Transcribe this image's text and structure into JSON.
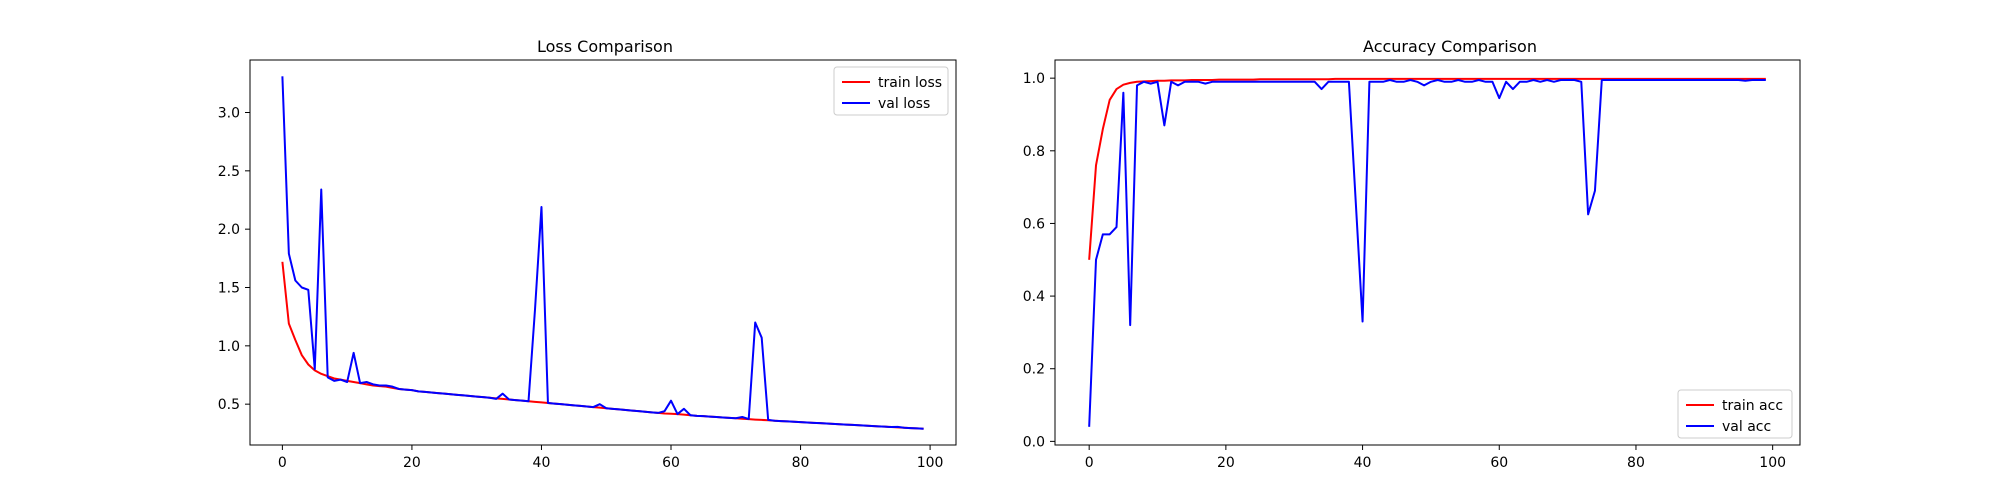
{
  "chart_data": [
    {
      "type": "line",
      "title": "Loss Comparison",
      "xlabel": "",
      "ylabel": "",
      "xlim": [
        -5,
        104
      ],
      "ylim": [
        0.15,
        3.45
      ],
      "xticks": [
        0,
        20,
        40,
        60,
        80,
        100
      ],
      "yticks": [
        0.5,
        1.0,
        1.5,
        2.0,
        2.5,
        3.0
      ],
      "xtick_labels": [
        "0",
        "20",
        "40",
        "60",
        "80",
        "100"
      ],
      "ytick_labels": [
        "0.5",
        "1.0",
        "1.5",
        "2.0",
        "2.5",
        "3.0"
      ],
      "grid": false,
      "legend_position": "top-right",
      "series": [
        {
          "name": "train loss",
          "color": "#ff0000",
          "x": [
            0,
            1,
            2,
            3,
            4,
            5,
            6,
            7,
            8,
            9,
            10,
            11,
            12,
            13,
            14,
            15,
            16,
            17,
            18,
            19,
            20,
            21,
            22,
            23,
            24,
            25,
            26,
            27,
            28,
            29,
            30,
            31,
            32,
            33,
            34,
            35,
            36,
            37,
            38,
            39,
            40,
            41,
            42,
            43,
            44,
            45,
            46,
            47,
            48,
            49,
            50,
            51,
            52,
            53,
            54,
            55,
            56,
            57,
            58,
            59,
            60,
            61,
            62,
            63,
            64,
            65,
            66,
            67,
            68,
            69,
            70,
            71,
            72,
            73,
            74,
            75,
            76,
            77,
            78,
            79,
            80,
            81,
            82,
            83,
            84,
            85,
            86,
            87,
            88,
            89,
            90,
            91,
            92,
            93,
            94,
            95,
            96,
            97,
            98,
            99
          ],
          "y": [
            1.72,
            1.19,
            1.05,
            0.92,
            0.84,
            0.79,
            0.76,
            0.74,
            0.72,
            0.71,
            0.7,
            0.69,
            0.68,
            0.67,
            0.66,
            0.655,
            0.65,
            0.64,
            0.63,
            0.625,
            0.62,
            0.61,
            0.605,
            0.6,
            0.595,
            0.59,
            0.585,
            0.58,
            0.575,
            0.57,
            0.565,
            0.56,
            0.555,
            0.55,
            0.545,
            0.54,
            0.535,
            0.53,
            0.525,
            0.52,
            0.515,
            0.51,
            0.505,
            0.5,
            0.495,
            0.49,
            0.485,
            0.48,
            0.475,
            0.47,
            0.465,
            0.46,
            0.455,
            0.45,
            0.445,
            0.44,
            0.435,
            0.43,
            0.425,
            0.42,
            0.418,
            0.415,
            0.41,
            0.405,
            0.4,
            0.397,
            0.393,
            0.39,
            0.386,
            0.382,
            0.379,
            0.375,
            0.372,
            0.368,
            0.365,
            0.362,
            0.358,
            0.355,
            0.352,
            0.349,
            0.346,
            0.343,
            0.34,
            0.337,
            0.334,
            0.331,
            0.328,
            0.325,
            0.322,
            0.319,
            0.316,
            0.313,
            0.31,
            0.307,
            0.304,
            0.301,
            0.298,
            0.295,
            0.292,
            0.289
          ]
        },
        {
          "name": "val loss",
          "color": "#0000ff",
          "x": [
            0,
            1,
            2,
            3,
            4,
            5,
            6,
            7,
            8,
            9,
            10,
            11,
            12,
            13,
            14,
            15,
            16,
            17,
            18,
            19,
            20,
            21,
            22,
            23,
            24,
            25,
            26,
            27,
            28,
            29,
            30,
            31,
            32,
            33,
            34,
            35,
            36,
            37,
            38,
            39,
            40,
            41,
            42,
            43,
            44,
            45,
            46,
            47,
            48,
            49,
            50,
            51,
            52,
            53,
            54,
            55,
            56,
            57,
            58,
            59,
            60,
            61,
            62,
            63,
            64,
            65,
            66,
            67,
            68,
            69,
            70,
            71,
            72,
            73,
            74,
            75,
            76,
            77,
            78,
            79,
            80,
            81,
            82,
            83,
            84,
            85,
            86,
            87,
            88,
            89,
            90,
            91,
            92,
            93,
            94,
            95,
            96,
            97,
            98,
            99
          ],
          "y": [
            3.31,
            1.79,
            1.56,
            1.5,
            1.48,
            0.8,
            2.34,
            0.73,
            0.7,
            0.71,
            0.69,
            0.94,
            0.68,
            0.69,
            0.67,
            0.66,
            0.66,
            0.65,
            0.63,
            0.625,
            0.62,
            0.61,
            0.605,
            0.6,
            0.595,
            0.59,
            0.585,
            0.58,
            0.575,
            0.57,
            0.565,
            0.56,
            0.555,
            0.545,
            0.59,
            0.54,
            0.535,
            0.53,
            0.525,
            1.31,
            2.19,
            0.51,
            0.505,
            0.5,
            0.495,
            0.49,
            0.485,
            0.48,
            0.475,
            0.5,
            0.465,
            0.46,
            0.455,
            0.45,
            0.445,
            0.44,
            0.435,
            0.43,
            0.425,
            0.44,
            0.53,
            0.415,
            0.46,
            0.405,
            0.4,
            0.397,
            0.393,
            0.39,
            0.386,
            0.382,
            0.379,
            0.39,
            0.372,
            1.2,
            1.07,
            0.365,
            0.358,
            0.355,
            0.352,
            0.349,
            0.346,
            0.343,
            0.34,
            0.337,
            0.334,
            0.331,
            0.328,
            0.325,
            0.322,
            0.319,
            0.316,
            0.313,
            0.31,
            0.307,
            0.304,
            0.305,
            0.298,
            0.295,
            0.292,
            0.289
          ]
        }
      ]
    },
    {
      "type": "line",
      "title": "Accuracy Comparison",
      "xlabel": "",
      "ylabel": "",
      "xlim": [
        -5,
        104
      ],
      "ylim": [
        -0.01,
        1.05
      ],
      "xticks": [
        0,
        20,
        40,
        60,
        80,
        100
      ],
      "yticks": [
        0.0,
        0.2,
        0.4,
        0.6,
        0.8,
        1.0
      ],
      "xtick_labels": [
        "0",
        "20",
        "40",
        "60",
        "80",
        "100"
      ],
      "ytick_labels": [
        "0.0",
        "0.2",
        "0.4",
        "0.6",
        "0.8",
        "1.0"
      ],
      "grid": false,
      "legend_position": "bottom-right",
      "series": [
        {
          "name": "train acc",
          "color": "#ff0000",
          "x": [
            0,
            1,
            2,
            3,
            4,
            5,
            6,
            7,
            8,
            9,
            10,
            11,
            12,
            13,
            14,
            15,
            16,
            17,
            18,
            19,
            20,
            21,
            22,
            23,
            24,
            25,
            26,
            27,
            28,
            29,
            30,
            31,
            32,
            33,
            34,
            35,
            36,
            37,
            38,
            39,
            40,
            41,
            42,
            43,
            44,
            45,
            46,
            47,
            48,
            49,
            50,
            51,
            52,
            53,
            54,
            55,
            56,
            57,
            58,
            59,
            60,
            61,
            62,
            63,
            64,
            65,
            66,
            67,
            68,
            69,
            70,
            71,
            72,
            73,
            74,
            75,
            76,
            77,
            78,
            79,
            80,
            81,
            82,
            83,
            84,
            85,
            86,
            87,
            88,
            89,
            90,
            91,
            92,
            93,
            94,
            95,
            96,
            97,
            98,
            99
          ],
          "y": [
            0.5,
            0.76,
            0.86,
            0.94,
            0.97,
            0.982,
            0.987,
            0.99,
            0.991,
            0.992,
            0.993,
            0.993,
            0.994,
            0.994,
            0.994,
            0.995,
            0.995,
            0.995,
            0.995,
            0.996,
            0.996,
            0.996,
            0.996,
            0.996,
            0.996,
            0.997,
            0.997,
            0.997,
            0.997,
            0.997,
            0.997,
            0.997,
            0.997,
            0.997,
            0.997,
            0.997,
            0.998,
            0.998,
            0.998,
            0.998,
            0.998,
            0.998,
            0.998,
            0.998,
            0.998,
            0.998,
            0.998,
            0.998,
            0.998,
            0.998,
            0.998,
            0.998,
            0.998,
            0.998,
            0.998,
            0.998,
            0.998,
            0.998,
            0.998,
            0.998,
            0.998,
            0.998,
            0.998,
            0.998,
            0.998,
            0.998,
            0.998,
            0.998,
            0.998,
            0.998,
            0.998,
            0.998,
            0.998,
            0.998,
            0.998,
            0.998,
            0.998,
            0.998,
            0.998,
            0.998,
            0.998,
            0.998,
            0.998,
            0.998,
            0.998,
            0.998,
            0.998,
            0.998,
            0.998,
            0.998,
            0.998,
            0.998,
            0.998,
            0.998,
            0.998,
            0.998,
            0.998,
            0.998,
            0.998,
            0.998
          ]
        },
        {
          "name": "val acc",
          "color": "#0000ff",
          "x": [
            0,
            1,
            2,
            3,
            4,
            5,
            6,
            7,
            8,
            9,
            10,
            11,
            12,
            13,
            14,
            15,
            16,
            17,
            18,
            19,
            20,
            21,
            22,
            23,
            24,
            25,
            26,
            27,
            28,
            29,
            30,
            31,
            32,
            33,
            34,
            35,
            36,
            37,
            38,
            39,
            40,
            41,
            42,
            43,
            44,
            45,
            46,
            47,
            48,
            49,
            50,
            51,
            52,
            53,
            54,
            55,
            56,
            57,
            58,
            59,
            60,
            61,
            62,
            63,
            64,
            65,
            66,
            67,
            68,
            69,
            70,
            71,
            72,
            73,
            74,
            75,
            76,
            77,
            78,
            79,
            80,
            81,
            82,
            83,
            84,
            85,
            86,
            87,
            88,
            89,
            90,
            91,
            92,
            93,
            94,
            95,
            96,
            97,
            98,
            99
          ],
          "y": [
            0.04,
            0.5,
            0.57,
            0.57,
            0.59,
            0.96,
            0.32,
            0.98,
            0.99,
            0.985,
            0.99,
            0.87,
            0.99,
            0.98,
            0.99,
            0.99,
            0.99,
            0.985,
            0.99,
            0.99,
            0.99,
            0.99,
            0.99,
            0.99,
            0.99,
            0.99,
            0.99,
            0.99,
            0.99,
            0.99,
            0.99,
            0.99,
            0.99,
            0.99,
            0.97,
            0.99,
            0.99,
            0.99,
            0.99,
            0.66,
            0.33,
            0.99,
            0.99,
            0.99,
            0.995,
            0.99,
            0.99,
            0.995,
            0.99,
            0.98,
            0.99,
            0.995,
            0.99,
            0.99,
            0.995,
            0.99,
            0.99,
            0.995,
            0.99,
            0.99,
            0.945,
            0.99,
            0.97,
            0.99,
            0.99,
            0.995,
            0.99,
            0.995,
            0.99,
            0.995,
            0.995,
            0.995,
            0.99,
            0.625,
            0.69,
            0.995,
            0.995,
            0.995,
            0.995,
            0.995,
            0.995,
            0.995,
            0.995,
            0.995,
            0.995,
            0.995,
            0.995,
            0.995,
            0.995,
            0.995,
            0.995,
            0.995,
            0.995,
            0.995,
            0.995,
            0.995,
            0.993,
            0.995,
            0.995,
            0.995
          ]
        }
      ]
    }
  ]
}
